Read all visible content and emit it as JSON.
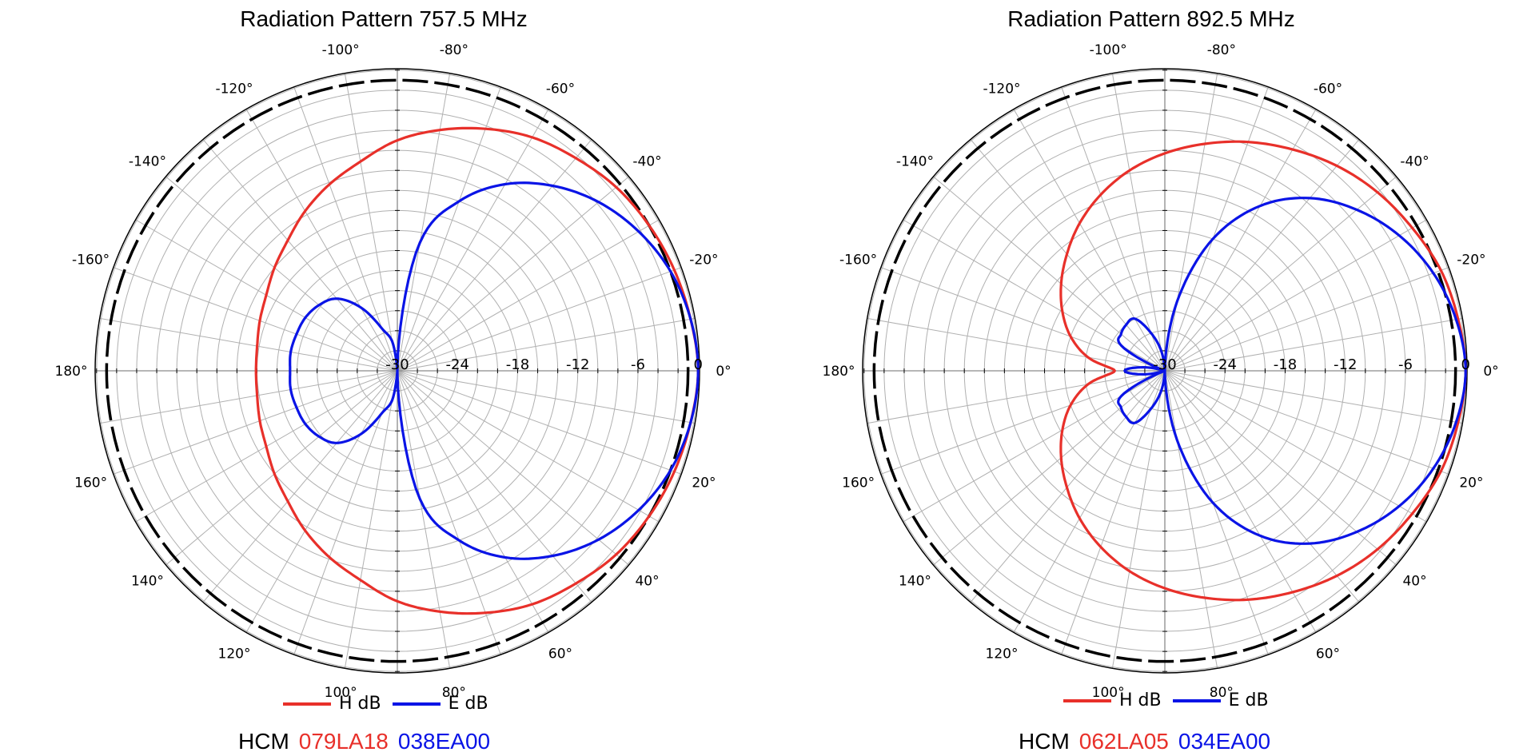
{
  "colors": {
    "h": "#e8302a",
    "e": "#0a14e6",
    "ref": "#000000",
    "grid": "#b0b0b0"
  },
  "charts": [
    {
      "title": "Radiation Pattern 757.5 MHz",
      "legend": {
        "h_label": "H dB",
        "e_label": "E dB"
      },
      "footer": {
        "prefix": "HCM",
        "h_code": "079LA18",
        "e_code": "038EA00"
      }
    },
    {
      "title": "Radiation Pattern 892.5 MHz",
      "legend": {
        "h_label": "H dB",
        "e_label": "E dB"
      },
      "footer": {
        "prefix": "HCM",
        "h_code": "062LA05",
        "e_code": "034EA00"
      }
    }
  ],
  "chart_data": [
    {
      "type": "polar",
      "title": "Radiation Pattern 757.5 MHz",
      "r_unit": "dB",
      "r_range": [
        -30,
        0
      ],
      "r_ticks": [
        -30,
        -24,
        -18,
        -12,
        -6,
        0
      ],
      "r_tick_labels": [
        "-30",
        "-24",
        "-18",
        "-12",
        "-6",
        "0"
      ],
      "theta_labels": [
        {
          "angle": 0,
          "text": "0°"
        },
        {
          "angle": 20,
          "text": "20°"
        },
        {
          "angle": 40,
          "text": "40°"
        },
        {
          "angle": 60,
          "text": "60°"
        },
        {
          "angle": 80,
          "text": "80°"
        },
        {
          "angle": 100,
          "text": "100°"
        },
        {
          "angle": 120,
          "text": "120°"
        },
        {
          "angle": 140,
          "text": "140°"
        },
        {
          "angle": 160,
          "text": "160°"
        },
        {
          "angle": 180,
          "text": "180°"
        },
        {
          "angle": -20,
          "text": "-20°"
        },
        {
          "angle": -40,
          "text": "-40°"
        },
        {
          "angle": -60,
          "text": "-60°"
        },
        {
          "angle": -80,
          "text": "-80°"
        },
        {
          "angle": -100,
          "text": "-100°"
        },
        {
          "angle": -120,
          "text": "-120°"
        },
        {
          "angle": -140,
          "text": "-140°"
        },
        {
          "angle": -160,
          "text": "-160°"
        }
      ],
      "reference_circle_db": 1,
      "series": [
        {
          "name": "H dB",
          "color": "#e8302a",
          "theta": [
            0,
            10,
            20,
            30,
            40,
            50,
            60,
            70,
            80,
            90,
            100,
            110,
            120,
            130,
            140,
            150,
            160,
            170,
            180,
            190,
            200,
            210,
            220,
            230,
            240,
            250,
            260,
            270,
            280,
            290,
            300,
            310,
            320,
            330,
            340,
            350
          ],
          "r": [
            0,
            -0.3,
            -0.6,
            -1.0,
            -1.5,
            -2.3,
            -3.1,
            -4.3,
            -5.6,
            -7.0,
            -8.8,
            -10.2,
            -11.6,
            -13.0,
            -14.0,
            -14.9,
            -15.4,
            -15.8,
            -15.9,
            -15.8,
            -15.4,
            -14.9,
            -14.0,
            -13.0,
            -11.6,
            -10.2,
            -8.8,
            -7.0,
            -5.6,
            -4.3,
            -3.1,
            -2.3,
            -1.5,
            -1.0,
            -0.6,
            -0.3
          ]
        },
        {
          "name": "E dB",
          "color": "#0a14e6",
          "theta": [
            0,
            10,
            20,
            30,
            40,
            50,
            60,
            70,
            80,
            90,
            100,
            110,
            120,
            130,
            140,
            150,
            160,
            170,
            180,
            190,
            200,
            210,
            220,
            230,
            240,
            250,
            260,
            270,
            280,
            290,
            300,
            310,
            320,
            330,
            340,
            350
          ],
          "r": [
            0,
            -0.3,
            -1.0,
            -2.2,
            -3.8,
            -5.9,
            -8.5,
            -12.0,
            -17.0,
            -30.0,
            -27.0,
            -25.5,
            -22.7,
            -20.6,
            -19.8,
            -19.4,
            -19.3,
            -19.2,
            -19.3,
            -19.2,
            -19.3,
            -19.4,
            -19.8,
            -20.6,
            -22.7,
            -25.5,
            -27.0,
            -30.0,
            -17.0,
            -12.0,
            -8.5,
            -5.9,
            -3.8,
            -2.2,
            -1.0,
            -0.3
          ]
        }
      ]
    },
    {
      "type": "polar",
      "title": "Radiation Pattern 892.5 MHz",
      "r_unit": "dB",
      "r_range": [
        -30,
        0
      ],
      "r_ticks": [
        -30,
        -24,
        -18,
        -12,
        -6,
        0
      ],
      "r_tick_labels": [
        "-30",
        "-24",
        "-18",
        "-12",
        "-6",
        "0"
      ],
      "theta_labels": [
        {
          "angle": 0,
          "text": "0°"
        },
        {
          "angle": 20,
          "text": "20°"
        },
        {
          "angle": 40,
          "text": "40°"
        },
        {
          "angle": 60,
          "text": "60°"
        },
        {
          "angle": 80,
          "text": "80°"
        },
        {
          "angle": 100,
          "text": "100°"
        },
        {
          "angle": 120,
          "text": "120°"
        },
        {
          "angle": 140,
          "text": "140°"
        },
        {
          "angle": 160,
          "text": "160°"
        },
        {
          "angle": 180,
          "text": "180°"
        },
        {
          "angle": -20,
          "text": "-20°"
        },
        {
          "angle": -40,
          "text": "-40°"
        },
        {
          "angle": -60,
          "text": "-60°"
        },
        {
          "angle": -80,
          "text": "-80°"
        },
        {
          "angle": -100,
          "text": "-100°"
        },
        {
          "angle": -120,
          "text": "-120°"
        },
        {
          "angle": -140,
          "text": "-140°"
        },
        {
          "angle": -160,
          "text": "-160°"
        }
      ],
      "reference_circle_db": 1,
      "series": [
        {
          "name": "H dB",
          "color": "#e8302a",
          "theta": [
            0,
            10,
            20,
            30,
            40,
            50,
            60,
            70,
            80,
            90,
            100,
            110,
            120,
            130,
            140,
            150,
            160,
            170,
            180,
            190,
            200,
            210,
            220,
            230,
            240,
            250,
            260,
            270,
            280,
            290,
            300,
            310,
            320,
            330,
            340,
            350
          ],
          "r": [
            0,
            -0.3,
            -0.7,
            -1.5,
            -2.3,
            -3.3,
            -4.5,
            -5.7,
            -7.0,
            -8.3,
            -9.7,
            -11.3,
            -13.0,
            -14.8,
            -16.5,
            -18.2,
            -20.0,
            -22.2,
            -25.0,
            -22.2,
            -20.0,
            -18.2,
            -16.5,
            -14.8,
            -13.0,
            -11.3,
            -9.7,
            -8.3,
            -7.0,
            -5.7,
            -4.5,
            -3.3,
            -2.3,
            -1.5,
            -0.7,
            -0.3
          ]
        },
        {
          "name": "E dB",
          "color": "#0a14e6",
          "theta": [
            0,
            10,
            20,
            30,
            40,
            50,
            60,
            70,
            80,
            90,
            100,
            110,
            120,
            130,
            140,
            150,
            160,
            170,
            180,
            190,
            200,
            210,
            220,
            230,
            240,
            250,
            260,
            270,
            280,
            290,
            300,
            310,
            320,
            330,
            340,
            350
          ],
          "r": [
            0,
            -0.5,
            -1.5,
            -3.0,
            -5.0,
            -7.5,
            -11.0,
            -16.0,
            -23.0,
            -30.0,
            -28.0,
            -26.0,
            -24.0,
            -24.0,
            -24.3,
            -25.0,
            -30.0,
            -28.0,
            -26.0,
            -28.0,
            -30.0,
            -25.0,
            -24.3,
            -24.0,
            -24.0,
            -26.0,
            -28.0,
            -30.0,
            -23.0,
            -16.0,
            -11.0,
            -7.5,
            -5.0,
            -3.0,
            -1.5,
            -0.5
          ]
        }
      ]
    }
  ]
}
